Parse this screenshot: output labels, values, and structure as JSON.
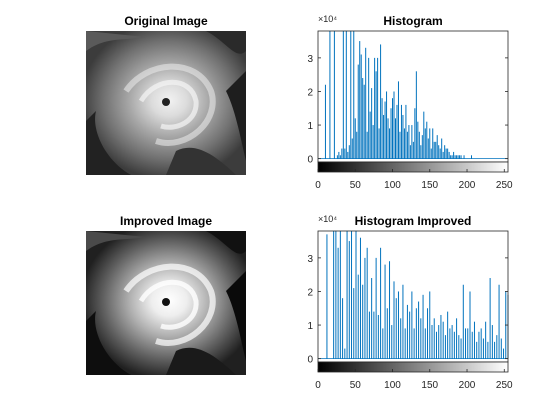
{
  "panels": {
    "original_title": "Original Image",
    "improved_title": "Improved Image",
    "hist_title": "Histogram",
    "hist_improved_title": "Histogram Improved"
  },
  "colors": {
    "bar": "#0072bd",
    "axis": "#262626"
  },
  "chart_data": [
    {
      "type": "bar",
      "title": "Histogram",
      "xlabel": "",
      "ylabel": "",
      "xlim": [
        0,
        255
      ],
      "ylim": [
        -0.1,
        3.8
      ],
      "y_multiplier_label": "×10⁴",
      "x_ticks": [
        0,
        50,
        100,
        150,
        200,
        250
      ],
      "y_ticks": [
        0,
        1,
        2,
        3
      ],
      "colorbar": "grayscale",
      "x": [
        2,
        4,
        6,
        8,
        10,
        12,
        14,
        16,
        18,
        20,
        22,
        24,
        26,
        28,
        30,
        32,
        34,
        36,
        38,
        40,
        42,
        44,
        46,
        48,
        50,
        52,
        54,
        56,
        58,
        60,
        62,
        64,
        66,
        68,
        70,
        72,
        74,
        76,
        78,
        80,
        82,
        84,
        86,
        88,
        90,
        92,
        94,
        96,
        98,
        100,
        102,
        104,
        106,
        108,
        110,
        112,
        114,
        116,
        118,
        120,
        122,
        124,
        126,
        128,
        130,
        132,
        134,
        136,
        138,
        140,
        142,
        144,
        146,
        148,
        150,
        152,
        154,
        156,
        158,
        160,
        162,
        164,
        166,
        168,
        170,
        172,
        174,
        176,
        178,
        180,
        182,
        184,
        186,
        188,
        190,
        192,
        194,
        196,
        198,
        200,
        202,
        204,
        206,
        208,
        210,
        212,
        214,
        216,
        218,
        220,
        222,
        224,
        226,
        228,
        230,
        232,
        234,
        236,
        238,
        240,
        242,
        244,
        246,
        248,
        250
      ],
      "values": [
        0,
        0,
        0,
        0,
        2.2,
        0,
        0,
        3.8,
        0,
        0,
        3.8,
        0,
        0.1,
        0.2,
        0.1,
        0.3,
        3.8,
        0.3,
        3.8,
        0.2,
        0.4,
        3.8,
        0.6,
        3.8,
        1.2,
        0.8,
        2.8,
        3.5,
        3.1,
        2.4,
        2.2,
        3.3,
        0.8,
        3.0,
        1.4,
        2.1,
        1.0,
        3.0,
        2.6,
        3.0,
        0.9,
        3.4,
        1.8,
        1.3,
        1.7,
        2.0,
        1.2,
        0.9,
        1.5,
        1.8,
        2.0,
        1.2,
        1.6,
        2.3,
        0.8,
        1.6,
        1.3,
        0.9,
        1.6,
        0.8,
        1.0,
        0.4,
        1.0,
        0.5,
        1.5,
        2.6,
        1.1,
        0.8,
        0.4,
        0.7,
        1.4,
        0.9,
        1.1,
        0.6,
        0.9,
        0.3,
        0.9,
        0.5,
        0.5,
        0.7,
        0.4,
        0.3,
        0.6,
        0.2,
        0.4,
        0.3,
        0.3,
        0.2,
        0.1,
        0.1,
        0.2,
        0.1,
        0.1,
        0.1,
        0.1,
        0.1,
        0,
        0.1,
        0,
        0,
        0,
        0,
        0.1,
        0,
        0,
        0,
        0,
        0,
        0,
        0,
        0,
        0,
        0,
        0,
        0,
        0,
        0,
        0,
        0,
        0,
        0,
        0,
        0,
        0,
        0
      ]
    },
    {
      "type": "bar",
      "title": "Histogram Improved",
      "xlabel": "",
      "ylabel": "",
      "xlim": [
        0,
        255
      ],
      "ylim": [
        -0.1,
        3.8
      ],
      "y_multiplier_label": "×10⁴",
      "x_ticks": [
        0,
        50,
        100,
        150,
        200,
        250
      ],
      "y_ticks": [
        0,
        1,
        2,
        3
      ],
      "colorbar": "grayscale",
      "x": [
        3,
        6,
        9,
        12,
        15,
        18,
        21,
        24,
        27,
        30,
        33,
        36,
        39,
        42,
        45,
        48,
        51,
        54,
        57,
        60,
        63,
        66,
        69,
        72,
        75,
        78,
        81,
        84,
        87,
        90,
        93,
        96,
        99,
        102,
        105,
        108,
        111,
        114,
        117,
        120,
        123,
        126,
        129,
        132,
        135,
        138,
        141,
        144,
        147,
        150,
        153,
        156,
        159,
        162,
        165,
        168,
        171,
        174,
        177,
        180,
        183,
        186,
        189,
        192,
        195,
        198,
        201,
        204,
        207,
        210,
        213,
        216,
        219,
        222,
        225,
        228,
        231,
        234,
        237,
        240,
        243,
        246,
        249,
        252,
        255
      ],
      "values": [
        0,
        0,
        0,
        3.7,
        0,
        0,
        3.8,
        3.8,
        3.3,
        3.8,
        1.8,
        0.3,
        3.8,
        3.5,
        3.8,
        2.1,
        3.8,
        2.5,
        3.6,
        2.2,
        3.0,
        3.3,
        1.4,
        2.4,
        1.4,
        3.0,
        1.3,
        3.3,
        0.9,
        2.8,
        1.5,
        2.9,
        1.0,
        2.3,
        1.8,
        2.0,
        1.2,
        2.2,
        0.9,
        1.6,
        1.4,
        2.0,
        0.9,
        1.5,
        1.7,
        1.2,
        1.9,
        0.9,
        1.5,
        2.0,
        1.0,
        1.2,
        0.8,
        1.0,
        1.3,
        1.1,
        0.7,
        1.4,
        0.9,
        1.0,
        0.8,
        1.2,
        0.7,
        0.6,
        2.2,
        0.9,
        0.9,
        2.0,
        0.8,
        1.1,
        0.5,
        0.8,
        0.9,
        0.6,
        1.1,
        0.5,
        2.4,
        1.0,
        0.5,
        0.7,
        2.2,
        0.6,
        0.3,
        2.0,
        1.9
      ]
    }
  ]
}
